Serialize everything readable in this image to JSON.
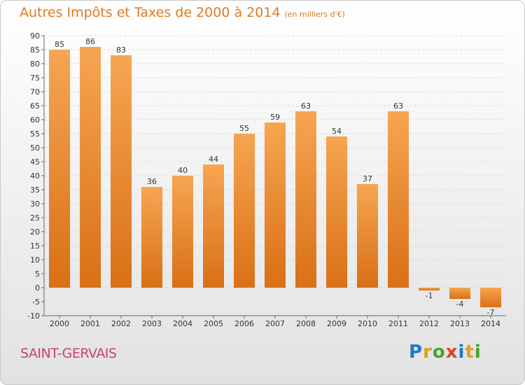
{
  "title": "Autres Impôts et Taxes de 2000 à 2014",
  "subtitle": "(en milliers d'€)",
  "town": "SAINT-GERVAIS",
  "logo": {
    "letters": [
      "P",
      "r",
      "o",
      "x",
      "i",
      "t",
      "i"
    ],
    "colors": [
      "#1f78c8",
      "#e0a020",
      "#4aa02c",
      "#e04020",
      "#1f78c8",
      "#e0a020",
      "#4aa02c"
    ]
  },
  "colors": {
    "bar_top": "#f6a552",
    "bar_bottom": "#d97016",
    "title": "#e07a20",
    "town": "#c8426e",
    "axis": "#666666",
    "grid": "#d9d9d9"
  },
  "chart_data": {
    "type": "bar",
    "categories": [
      "2000",
      "2001",
      "2002",
      "2003",
      "2004",
      "2005",
      "2006",
      "2007",
      "2008",
      "2009",
      "2010",
      "2011",
      "2012",
      "2013",
      "2014"
    ],
    "values": [
      85,
      86,
      83,
      36,
      40,
      44,
      55,
      59,
      63,
      54,
      37,
      63,
      -1,
      -4,
      -7
    ],
    "ylim": [
      -10,
      90
    ],
    "yticks": [
      -10,
      -5,
      0,
      5,
      10,
      15,
      20,
      25,
      30,
      35,
      40,
      45,
      50,
      55,
      60,
      65,
      70,
      75,
      80,
      85,
      90
    ],
    "grid": true,
    "data_labels": true
  }
}
